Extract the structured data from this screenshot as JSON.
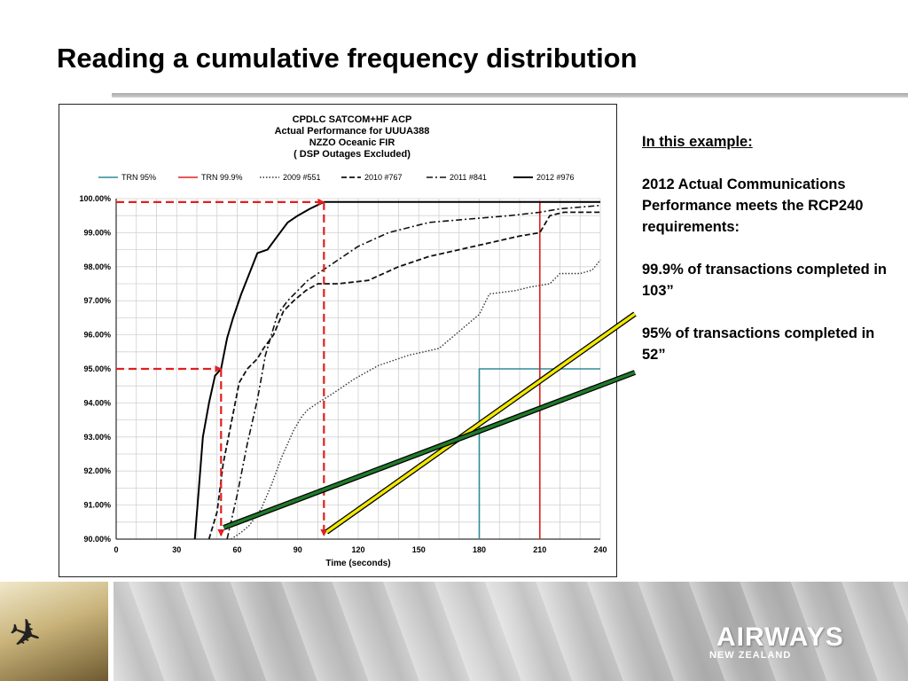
{
  "slide": {
    "title": "Reading a cumulative frequency distribution"
  },
  "side_note": {
    "heading": "In this example:",
    "para1": "2012 Actual Communications Performance meets the RCP240 requirements:",
    "para2": "99.9% of transactions completed in 103”",
    "para3": "95% of transactions completed in 52”"
  },
  "footer": {
    "brand": "AIRWAYS",
    "brand_sub": "NEW ZEALAND",
    "plane_icon": "airplane-icon"
  },
  "colors": {
    "trn95": "#2e8b9a",
    "trn999": "#e02020",
    "dashed_arrows": "#e02020",
    "pointer_yellow": "#f2e800",
    "pointer_green": "#1f7a2a",
    "pointer_outline": "#000000"
  },
  "chart_data": {
    "type": "line",
    "title_lines": [
      "CPDLC  SATCOM+HF  ACP",
      "Actual Performance  for UUUA388",
      "NZZO Oceanic FIR",
      "( DSP Outages Excluded)"
    ],
    "xlabel": "Time (seconds)",
    "ylabel": "",
    "xlim": [
      0,
      240
    ],
    "ylim": [
      90,
      100
    ],
    "x_ticks": [
      0,
      30,
      60,
      90,
      120,
      150,
      180,
      210,
      240
    ],
    "y_ticks": [
      90,
      91,
      92,
      93,
      94,
      95,
      96,
      97,
      98,
      99,
      100
    ],
    "y_tick_labels": [
      "90.00%",
      "91.00%",
      "92.00%",
      "93.00%",
      "94.00%",
      "95.00%",
      "96.00%",
      "97.00%",
      "98.00%",
      "99.00%",
      "100.00%"
    ],
    "grid": true,
    "legend_position": "top",
    "legend": [
      "TRN 95%",
      "TRN 99.9%",
      "2009 #551",
      "2010 #767",
      "2011 #841",
      "2012 #976"
    ],
    "series": [
      {
        "name": "TRN 95%",
        "style": "trn95",
        "points": [
          [
            180,
            90
          ],
          [
            180,
            95
          ],
          [
            240,
            95
          ]
        ]
      },
      {
        "name": "TRN 99.9%",
        "style": "trn999",
        "points": [
          [
            210,
            90
          ],
          [
            210,
            99.9
          ],
          [
            240,
            99.9
          ]
        ]
      },
      {
        "name": "2009 #551",
        "style": "dotted",
        "points": [
          [
            57,
            90
          ],
          [
            62,
            90.2
          ],
          [
            66,
            90.4
          ],
          [
            72,
            90.9
          ],
          [
            77,
            91.6
          ],
          [
            82,
            92.4
          ],
          [
            88,
            93.2
          ],
          [
            92,
            93.6
          ],
          [
            95,
            93.8
          ],
          [
            100,
            94.0
          ],
          [
            108,
            94.3
          ],
          [
            118,
            94.7
          ],
          [
            130,
            95.1
          ],
          [
            145,
            95.4
          ],
          [
            160,
            95.6
          ],
          [
            172,
            96.2
          ],
          [
            180,
            96.6
          ],
          [
            185,
            97.2
          ],
          [
            198,
            97.3
          ],
          [
            205,
            97.4
          ],
          [
            215,
            97.5
          ],
          [
            220,
            97.8
          ],
          [
            230,
            97.8
          ],
          [
            236,
            97.9
          ],
          [
            240,
            98.2
          ]
        ]
      },
      {
        "name": "2010 #767",
        "style": "dashed",
        "points": [
          [
            46,
            90
          ],
          [
            50,
            90.8
          ],
          [
            53,
            92.2
          ],
          [
            57,
            93.4
          ],
          [
            61,
            94.6
          ],
          [
            65,
            95.0
          ],
          [
            70,
            95.3
          ],
          [
            73,
            95.6
          ],
          [
            78,
            96.0
          ],
          [
            83,
            96.7
          ],
          [
            88,
            97.0
          ],
          [
            94,
            97.3
          ],
          [
            100,
            97.5
          ],
          [
            110,
            97.5
          ],
          [
            125,
            97.6
          ],
          [
            140,
            98.0
          ],
          [
            155,
            98.3
          ],
          [
            170,
            98.5
          ],
          [
            185,
            98.7
          ],
          [
            200,
            98.9
          ],
          [
            210,
            99.0
          ],
          [
            215,
            99.5
          ],
          [
            222,
            99.6
          ],
          [
            240,
            99.6
          ]
        ]
      },
      {
        "name": "2011 #841",
        "style": "dashdot",
        "points": [
          [
            55,
            90
          ],
          [
            60,
            91.3
          ],
          [
            65,
            92.8
          ],
          [
            70,
            94.1
          ],
          [
            74,
            95.4
          ],
          [
            80,
            96.6
          ],
          [
            85,
            97.0
          ],
          [
            90,
            97.3
          ],
          [
            95,
            97.6
          ],
          [
            100,
            97.8
          ],
          [
            110,
            98.2
          ],
          [
            120,
            98.6
          ],
          [
            135,
            99.0
          ],
          [
            155,
            99.3
          ],
          [
            175,
            99.4
          ],
          [
            195,
            99.5
          ],
          [
            210,
            99.6
          ],
          [
            220,
            99.7
          ],
          [
            240,
            99.8
          ]
        ]
      },
      {
        "name": "2012 #976",
        "style": "solid",
        "points": [
          [
            39,
            90
          ],
          [
            41,
            91.5
          ],
          [
            43,
            93.0
          ],
          [
            46,
            94.0
          ],
          [
            49,
            94.8
          ],
          [
            52,
            95.0
          ],
          [
            55,
            95.9
          ],
          [
            58,
            96.5
          ],
          [
            62,
            97.2
          ],
          [
            66,
            97.8
          ],
          [
            70,
            98.4
          ],
          [
            75,
            98.5
          ],
          [
            80,
            98.9
          ],
          [
            85,
            99.3
          ],
          [
            90,
            99.5
          ],
          [
            96,
            99.7
          ],
          [
            103,
            99.9
          ],
          [
            120,
            99.9
          ],
          [
            240,
            99.9
          ]
        ]
      }
    ],
    "annotations": {
      "arrow_999": {
        "x": 103,
        "y": 99.9
      },
      "arrow_95": {
        "x": 52,
        "y": 95
      }
    }
  }
}
